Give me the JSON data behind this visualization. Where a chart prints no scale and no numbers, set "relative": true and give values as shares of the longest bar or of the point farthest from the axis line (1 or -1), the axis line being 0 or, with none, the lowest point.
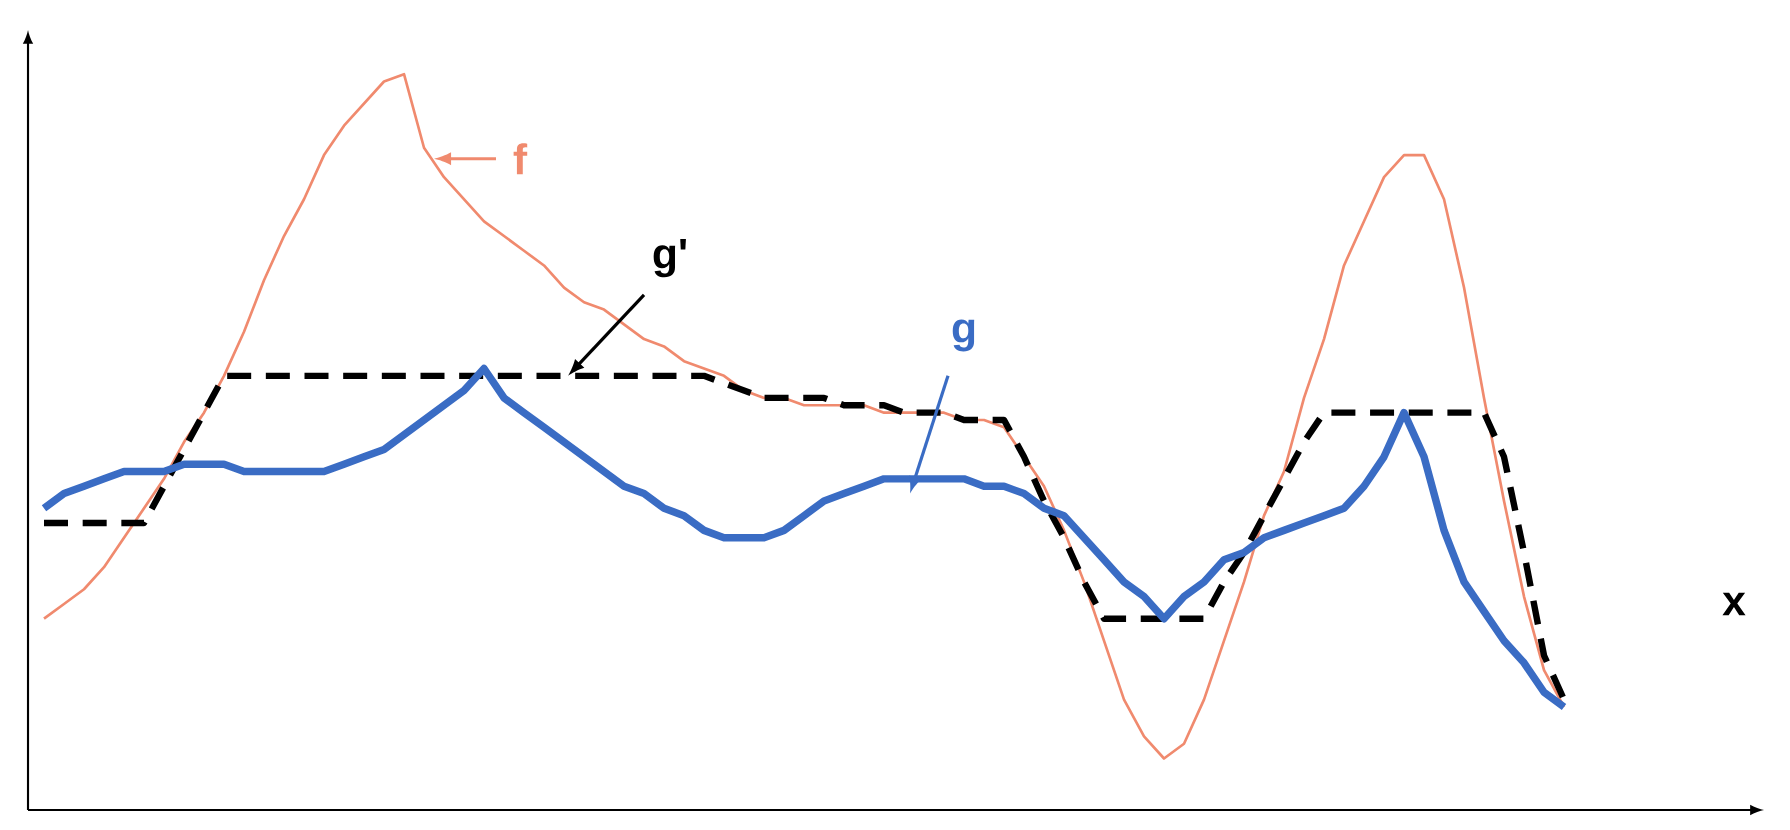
{
  "chart_data": {
    "type": "line",
    "relative": true,
    "xlabel": "x",
    "marker": "none",
    "categories": [
      null,
      null,
      null,
      null,
      null,
      null,
      null,
      null,
      null,
      null,
      null,
      null,
      null,
      null,
      null,
      null,
      null,
      null,
      null,
      null,
      null,
      null,
      null,
      null,
      null,
      null,
      null,
      null,
      null,
      null,
      null,
      null,
      null,
      null,
      null,
      null,
      null,
      null,
      null,
      null,
      null,
      null,
      null,
      null,
      null,
      null,
      null,
      null,
      null,
      null,
      null,
      null,
      null,
      null,
      null,
      null,
      null,
      null,
      null,
      null,
      null,
      null,
      null,
      null,
      null,
      null,
      null,
      null,
      null,
      null,
      null,
      null,
      null,
      null,
      null,
      null,
      null
    ],
    "series": [
      {
        "name": "f",
        "color": "#f08a6e",
        "line_style": "solid",
        "values": [
          0.26,
          0.28,
          0.3,
          0.33,
          0.37,
          0.41,
          0.45,
          0.5,
          0.54,
          0.59,
          0.65,
          0.72,
          0.78,
          0.83,
          0.89,
          0.93,
          0.96,
          0.99,
          1.0,
          0.9,
          0.86,
          0.83,
          0.8,
          0.78,
          0.76,
          0.74,
          0.71,
          0.69,
          0.68,
          0.66,
          0.64,
          0.63,
          0.61,
          0.6,
          0.59,
          0.57,
          0.56,
          0.56,
          0.55,
          0.55,
          0.55,
          0.55,
          0.54,
          0.54,
          0.54,
          0.54,
          0.53,
          0.53,
          0.52,
          0.48,
          0.44,
          0.38,
          0.31,
          0.23,
          0.15,
          0.1,
          0.07,
          0.09,
          0.15,
          0.23,
          0.31,
          0.4,
          0.46,
          0.56,
          0.64,
          0.74,
          0.8,
          0.86,
          0.89,
          0.89,
          0.83,
          0.71,
          0.56,
          0.42,
          0.29,
          0.19,
          0.14
        ]
      },
      {
        "name": "g'",
        "color": "#000000",
        "line_style": "dashed",
        "values": [
          0.39,
          0.39,
          0.39,
          0.39,
          0.39,
          0.39,
          0.44,
          0.49,
          0.54,
          0.59,
          0.59,
          0.59,
          0.59,
          0.59,
          0.59,
          0.59,
          0.59,
          0.59,
          0.59,
          0.59,
          0.59,
          0.59,
          0.59,
          0.59,
          0.59,
          0.59,
          0.59,
          0.59,
          0.59,
          0.59,
          0.59,
          0.59,
          0.59,
          0.59,
          0.58,
          0.57,
          0.56,
          0.56,
          0.56,
          0.56,
          0.55,
          0.55,
          0.55,
          0.54,
          0.54,
          0.54,
          0.53,
          0.53,
          0.53,
          0.48,
          0.42,
          0.37,
          0.31,
          0.26,
          0.26,
          0.26,
          0.26,
          0.26,
          0.26,
          0.31,
          0.35,
          0.4,
          0.45,
          0.5,
          0.54,
          0.54,
          0.54,
          0.54,
          0.54,
          0.54,
          0.54,
          0.54,
          0.54,
          0.48,
          0.35,
          0.21,
          0.15
        ]
      },
      {
        "name": "g",
        "color": "#3a6cc4",
        "line_style": "solid",
        "values": [
          0.41,
          0.43,
          0.44,
          0.45,
          0.46,
          0.46,
          0.46,
          0.47,
          0.47,
          0.47,
          0.46,
          0.46,
          0.46,
          0.46,
          0.46,
          0.47,
          0.48,
          0.49,
          0.51,
          0.53,
          0.55,
          0.57,
          0.6,
          0.56,
          0.54,
          0.52,
          0.5,
          0.48,
          0.46,
          0.44,
          0.43,
          0.41,
          0.4,
          0.38,
          0.37,
          0.37,
          0.37,
          0.38,
          0.4,
          0.42,
          0.43,
          0.44,
          0.45,
          0.45,
          0.45,
          0.45,
          0.45,
          0.44,
          0.44,
          0.43,
          0.41,
          0.4,
          0.37,
          0.34,
          0.31,
          0.29,
          0.26,
          0.29,
          0.31,
          0.34,
          0.35,
          0.37,
          0.38,
          0.39,
          0.4,
          0.41,
          0.44,
          0.48,
          0.54,
          0.48,
          0.38,
          0.31,
          0.27,
          0.23,
          0.2,
          0.16,
          0.14
        ]
      }
    ]
  }
}
